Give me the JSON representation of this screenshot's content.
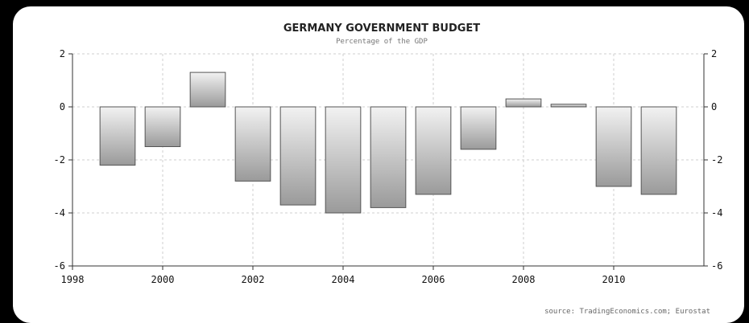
{
  "chart_data": {
    "type": "bar",
    "title": "GERMANY GOVERNMENT BUDGET",
    "subtitle": "Percentage of the GDP",
    "source": "source: TradingEconomics.com; Eurostat",
    "x": [
      1999,
      2000,
      2001,
      2002,
      2003,
      2004,
      2005,
      2006,
      2007,
      2008,
      2009,
      2010,
      2011
    ],
    "values": [
      -2.2,
      -1.5,
      1.3,
      -2.8,
      -3.7,
      -4.0,
      -3.8,
      -3.3,
      -1.6,
      0.3,
      0.1,
      -3.0,
      -3.3
    ],
    "xlim": [
      1998,
      2012
    ],
    "ylim": [
      -6,
      2
    ],
    "x_ticks": [
      "1998",
      "2000",
      "2002",
      "2004",
      "2006",
      "2008",
      "2010"
    ],
    "y_ticks": [
      "2",
      "0",
      "-2",
      "-4",
      "-6"
    ],
    "grid": true,
    "bar_fill": [
      "#f2f2f2",
      "#9a9a9a"
    ],
    "bar_stroke": "#555555",
    "legend": "none"
  }
}
